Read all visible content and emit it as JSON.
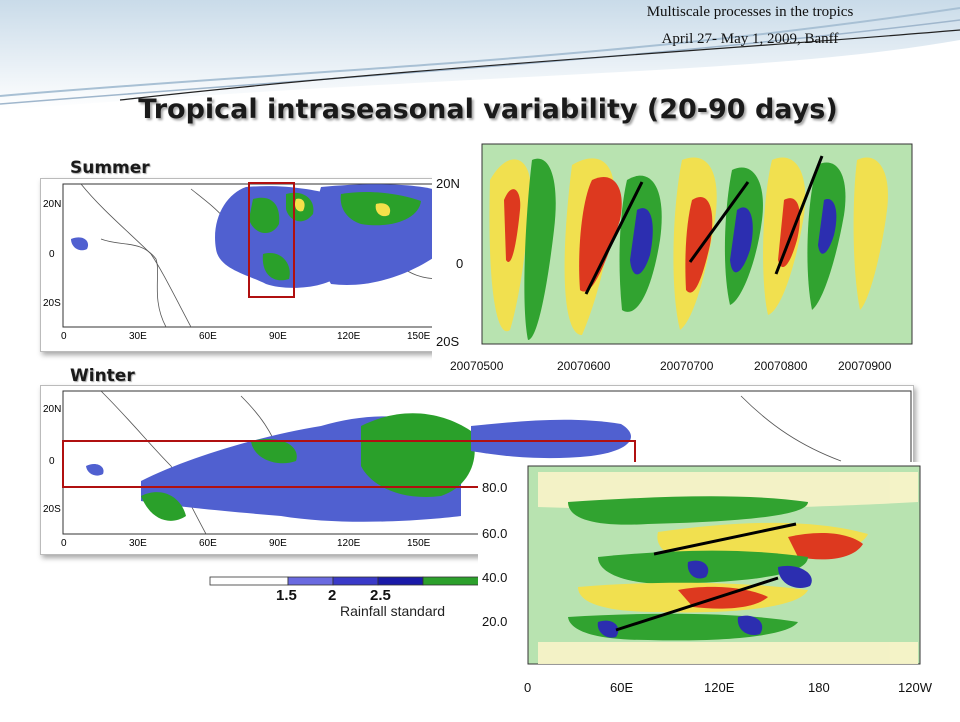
{
  "conference": {
    "line1": "Multiscale processes in the tropics",
    "line2": "April 27- May 1, 2009, Banff"
  },
  "slide": {
    "title": "Tropical intraseasonal variability (20-90 days)"
  },
  "summer_panel": {
    "label": "Summer",
    "lat_ticks": [
      "20N",
      "0",
      "20S"
    ],
    "lon_ticks": [
      "0",
      "30E",
      "60E",
      "90E",
      "120E",
      "150E"
    ]
  },
  "winter_panel": {
    "label": "Winter",
    "lat_ticks": [
      "20N",
      "0",
      "20S"
    ],
    "lon_ticks": [
      "0",
      "30E",
      "60E",
      "90E",
      "120E",
      "150E"
    ]
  },
  "colorbar": {
    "ticks": [
      "1.5",
      "2",
      "2.5"
    ],
    "colors": [
      "#ffffff",
      "#6a6ae0",
      "#3a3ac8",
      "#1a1aa8",
      "#2ca02c"
    ],
    "caption": "Rainfall standard"
  },
  "hovmoller_time": {
    "lat_ticks": [
      "20N",
      "0",
      "20S"
    ],
    "date_ticks": [
      "20070500",
      "20070600",
      "20070700",
      "20070800",
      "20070900"
    ],
    "propagation": "northward"
  },
  "hovmoller_lon": {
    "y_ticks": [
      "80.0",
      "60.0",
      "40.0",
      "20.0"
    ],
    "lon_ticks": [
      "0",
      "60E",
      "120E",
      "180",
      "120W"
    ],
    "propagation": "eastward"
  },
  "colors": {
    "red_box": "#b01010",
    "deep_blue": "#2525b0",
    "green": "#2aa02a",
    "yellow": "#f5e04a",
    "red": "#e03018"
  }
}
